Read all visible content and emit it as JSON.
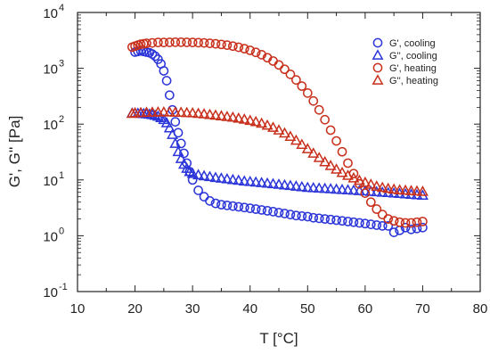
{
  "chart_data": {
    "type": "scatter",
    "title": "",
    "xlabel": "T [°C]",
    "ylabel": "G', G'' [Pa]",
    "xlim": [
      10,
      80
    ],
    "ylim": [
      0.1,
      10000
    ],
    "yscale": "log",
    "grid": false,
    "legend_position": "top-right",
    "x_ticks": [
      {
        "value": 10,
        "label": "10"
      },
      {
        "value": 20,
        "label": "20"
      },
      {
        "value": 30,
        "label": "30"
      },
      {
        "value": 40,
        "label": "40"
      },
      {
        "value": 50,
        "label": "50"
      },
      {
        "value": 60,
        "label": "60"
      },
      {
        "value": 70,
        "label": "70"
      },
      {
        "value": 80,
        "label": "80"
      }
    ],
    "y_ticks": [
      {
        "value": 0.1,
        "base": "10",
        "exp": "-1"
      },
      {
        "value": 1,
        "base": "10",
        "exp": "0"
      },
      {
        "value": 10,
        "base": "10",
        "exp": "1"
      },
      {
        "value": 100,
        "base": "10",
        "exp": "2"
      },
      {
        "value": 1000,
        "base": "10",
        "exp": "3"
      },
      {
        "value": 10000,
        "base": "10",
        "exp": "4"
      }
    ],
    "series": [
      {
        "name": "G', cooling",
        "marker": "circle",
        "color": "#2b35d8",
        "x": [
          70,
          69,
          68,
          67,
          66,
          65,
          64,
          63,
          62,
          61,
          60,
          59,
          58,
          57,
          56,
          55,
          54,
          53,
          52,
          51,
          50,
          49,
          48,
          47,
          46,
          45,
          44,
          43,
          42,
          41,
          40,
          39,
          38,
          37,
          36,
          35,
          34,
          33,
          32,
          31,
          30,
          29.5,
          29,
          28.5,
          28,
          27.5,
          27,
          26.5,
          26,
          25.5,
          25,
          24.5,
          24,
          23.5,
          23,
          22.5,
          22,
          21.5,
          21,
          20.5,
          20
        ],
        "y": [
          1.4,
          1.35,
          1.3,
          1.4,
          1.25,
          1.15,
          1.5,
          1.5,
          1.55,
          1.6,
          1.65,
          1.7,
          1.75,
          1.8,
          1.85,
          1.9,
          1.95,
          2.0,
          2.05,
          2.1,
          2.2,
          2.25,
          2.3,
          2.4,
          2.5,
          2.6,
          2.7,
          2.8,
          2.9,
          3.0,
          3.1,
          3.2,
          3.3,
          3.4,
          3.5,
          3.6,
          3.8,
          4.2,
          5.0,
          6.5,
          10,
          14,
          20,
          30,
          45,
          70,
          110,
          180,
          330,
          600,
          900,
          1200,
          1450,
          1650,
          1800,
          1900,
          1950,
          2000,
          2050,
          2000,
          1950
        ]
      },
      {
        "name": "G'', cooling",
        "marker": "triangle",
        "color": "#2b35d8",
        "x": [
          70,
          69,
          68,
          67,
          66,
          65,
          64,
          63,
          62,
          61,
          60,
          59,
          58,
          57,
          56,
          55,
          54,
          53,
          52,
          51,
          50,
          49,
          48,
          47,
          46,
          45,
          44,
          43,
          42,
          41,
          40,
          39,
          38,
          37,
          36,
          35,
          34,
          33,
          32,
          31,
          30,
          29.5,
          29,
          28.5,
          28,
          27.5,
          27,
          26.5,
          26,
          25.5,
          25,
          24.5,
          24,
          23.5,
          23,
          22.5,
          22,
          21.5,
          21,
          20.5,
          20,
          19.5
        ],
        "y": [
          5.3,
          5.4,
          5.5,
          5.6,
          5.7,
          5.8,
          5.9,
          6.0,
          6.1,
          6.2,
          6.3,
          6.4,
          6.5,
          6.6,
          6.7,
          6.8,
          6.9,
          7.0,
          7.1,
          7.2,
          7.3,
          7.5,
          7.7,
          7.9,
          8.1,
          8.3,
          8.5,
          8.7,
          8.9,
          9.1,
          9.3,
          9.5,
          9.8,
          10.1,
          10.4,
          10.7,
          11.0,
          11.4,
          11.8,
          12.3,
          13,
          14,
          16,
          19,
          24,
          32,
          45,
          65,
          85,
          105,
          120,
          130,
          138,
          143,
          147,
          150,
          152,
          154,
          155,
          156,
          157,
          157
        ]
      },
      {
        "name": "G', heating",
        "marker": "circle",
        "color": "#c8301c",
        "x": [
          19.5,
          20,
          20.5,
          21,
          21.5,
          22,
          23,
          24,
          25,
          26,
          27,
          28,
          29,
          30,
          31,
          32,
          33,
          34,
          35,
          36,
          37,
          38,
          39,
          40,
          41,
          42,
          43,
          44,
          45,
          46,
          47,
          48,
          49,
          50,
          51,
          52,
          53,
          54,
          55,
          56,
          57,
          58,
          59,
          60,
          61,
          62,
          63,
          64,
          65,
          66,
          67,
          68,
          69,
          70
        ],
        "y": [
          2400,
          2500,
          2600,
          2700,
          2750,
          2800,
          2850,
          2900,
          2900,
          2920,
          2930,
          2930,
          2920,
          2900,
          2880,
          2850,
          2800,
          2750,
          2680,
          2600,
          2500,
          2380,
          2250,
          2100,
          1930,
          1750,
          1550,
          1350,
          1150,
          960,
          780,
          620,
          480,
          360,
          260,
          180,
          120,
          78,
          50,
          32,
          20,
          13,
          8.5,
          5.8,
          4.0,
          3.0,
          2.4,
          2.0,
          1.85,
          1.75,
          1.7,
          1.7,
          1.75,
          1.8
        ]
      },
      {
        "name": "G'', heating",
        "marker": "triangle",
        "color": "#c8301c",
        "x": [
          19.5,
          20,
          21,
          22,
          23,
          24,
          25,
          26,
          27,
          28,
          29,
          30,
          31,
          32,
          33,
          34,
          35,
          36,
          37,
          38,
          39,
          40,
          41,
          42,
          43,
          44,
          45,
          46,
          47,
          48,
          49,
          50,
          51,
          52,
          53,
          54,
          55,
          56,
          57,
          58,
          59,
          60,
          61,
          62,
          63,
          64,
          65,
          66,
          67,
          68,
          69,
          70
        ],
        "y": [
          155,
          158,
          160,
          162,
          163,
          164,
          164,
          164,
          163,
          162,
          160,
          158,
          155,
          152,
          148,
          144,
          140,
          136,
          132,
          127,
          122,
          116,
          110,
          103,
          95,
          87,
          78,
          69,
          60,
          51,
          43,
          36,
          30,
          25,
          21,
          18,
          15.5,
          13.5,
          12,
          10.8,
          9.8,
          9.0,
          8.3,
          7.7,
          7.3,
          7.0,
          6.8,
          6.6,
          6.5,
          6.4,
          6.3,
          6.2
        ]
      }
    ]
  }
}
